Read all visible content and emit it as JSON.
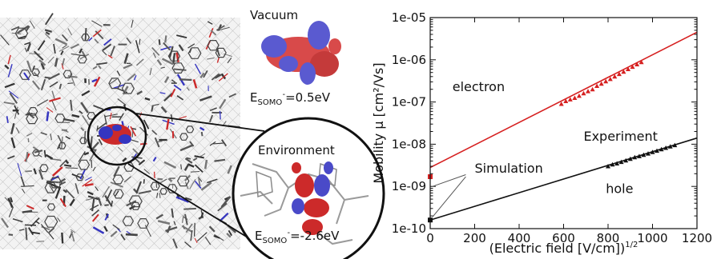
{
  "left_panel": {
    "vacuum_label": "Vacuum",
    "vacuum_energy": {
      "prefix": "E",
      "sub": "SOMO",
      "sup": "-",
      "value": "=0.5eV"
    },
    "environment_label": "Environment",
    "environment_energy": {
      "prefix": "E",
      "sub": "SOMO",
      "sup": "-",
      "value": "=-2.6eV"
    }
  },
  "chart_data": {
    "type": "line",
    "xlabel": "(Electric field [V/cm])",
    "xlabel_sup": "1/2",
    "ylabel": "Mobility μ [cm²/Vs]",
    "xlim": [
      0,
      1200
    ],
    "ylim": [
      1e-10,
      1e-05
    ],
    "y_scale": "log",
    "x_ticks": [
      0,
      200,
      400,
      600,
      800,
      1000,
      1200
    ],
    "x_tick_labels": [
      "0",
      "200",
      "400",
      "600",
      "800",
      "1000",
      "1200"
    ],
    "y_ticks": [
      1e-10,
      1e-09,
      1e-08,
      1e-07,
      1e-06,
      1e-05
    ],
    "y_tick_labels": [
      "1e-10",
      "1e-09",
      "1e-08",
      "1e-07",
      "1e-06",
      "1e-05"
    ],
    "series": [
      {
        "name": "electron",
        "color": "#d62020",
        "line_x": [
          0,
          1200
        ],
        "line_y": [
          2.8e-09,
          4.5e-06
        ],
        "sim_point": {
          "x": 0,
          "y": 1.7e-09
        },
        "exp_points": {
          "x": [
            590,
            610,
            630,
            650,
            670,
            690,
            710,
            730,
            750,
            770,
            790,
            810,
            830,
            850,
            870,
            890,
            910,
            930,
            950
          ],
          "y": [
            9e-08,
            1.05e-07,
            1.15e-07,
            1.25e-07,
            1.4e-07,
            1.6e-07,
            1.8e-07,
            2e-07,
            2.4e-07,
            2.7e-07,
            3.1e-07,
            3.5e-07,
            4e-07,
            4.6e-07,
            5.2e-07,
            6e-07,
            6.8e-07,
            7.8e-07,
            8.8e-07
          ]
        }
      },
      {
        "name": "hole",
        "color": "#111111",
        "line_x": [
          0,
          1200
        ],
        "line_y": [
          1.6e-10,
          1.4e-08
        ],
        "sim_point": {
          "x": 0,
          "y": 1.6e-10
        },
        "exp_points": {
          "x": [
            800,
            820,
            840,
            860,
            880,
            900,
            920,
            940,
            960,
            980,
            1000,
            1020,
            1040,
            1060,
            1080,
            1100
          ],
          "y": [
            3e-09,
            3.3e-09,
            3.5e-09,
            3.8e-09,
            4.1e-09,
            4.5e-09,
            4.9e-09,
            5.2e-09,
            5.6e-09,
            6e-09,
            6.5e-09,
            7e-09,
            7.6e-09,
            8.2e-09,
            8.8e-09,
            9.5e-09
          ]
        }
      }
    ],
    "annotations": {
      "experiment": "Experiment",
      "simulation": "Simulation",
      "electron": "electron",
      "hole": "hole"
    }
  }
}
